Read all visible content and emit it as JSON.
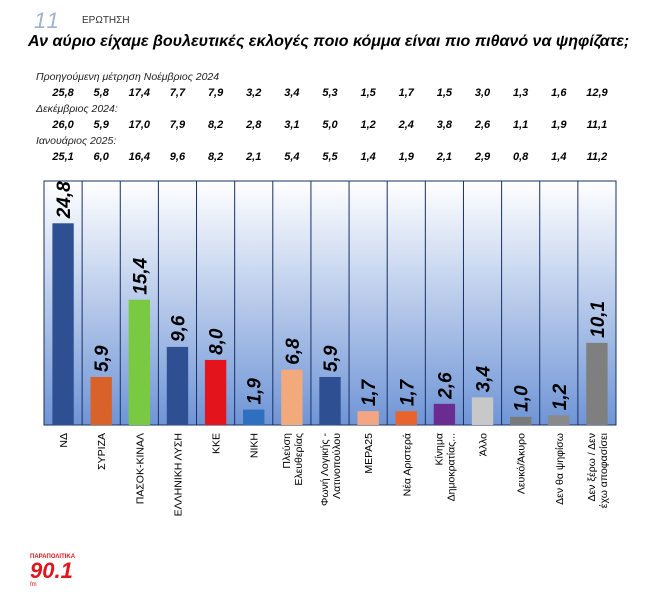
{
  "header": {
    "question_number": "11",
    "question_label": "ΕΡΩΤΗΣΗ",
    "title": "Αν αύριο είχαμε βουλευτικές εκλογές ποιο κόμμα είναι πιο πιθανό να ψηφίζατε;"
  },
  "previous_measurements": [
    {
      "label": "Προηγούμενη μέτρηση Νοέμβριος 2024",
      "values": [
        "25,8",
        "5,8",
        "17,4",
        "7,7",
        "7,9",
        "3,2",
        "3,4",
        "5,3",
        "1,5",
        "1,7",
        "1,5",
        "3,0",
        "1,3",
        "1,6",
        "12,9"
      ]
    },
    {
      "label": "Δεκέμβριος 2024:",
      "values": [
        "26,0",
        "5,9",
        "17,0",
        "7,9",
        "8,2",
        "2,8",
        "3,1",
        "5,0",
        "1,2",
        "2,4",
        "3,8",
        "2,6",
        "1,1",
        "1,9",
        "11,1"
      ]
    },
    {
      "label": "Ιανουάριος 2025:",
      "values": [
        "25,1",
        "6,0",
        "16,4",
        "9,6",
        "8,2",
        "2,1",
        "5,4",
        "5,5",
        "1,4",
        "1,9",
        "2,1",
        "2,9",
        "0,8",
        "1,4",
        "11,2"
      ]
    }
  ],
  "chart_data": {
    "type": "bar",
    "title": "Αν αύριο είχαμε βουλευτικές εκλογές ποιο κόμμα είναι πιο πιθανό να ψηφίζατε;",
    "categories": [
      "ΝΔ",
      "ΣΥΡΙΖΑ",
      "ΠΑΣΟΚ-ΚΙΝΑΛ",
      "ΕΛΛΗΝΙΚΗ ΛΥΣΗ",
      "ΚΚΕ",
      "ΝΙΚΗ",
      "Πλεύση Ελευθερίας",
      "Φωνή Λογικής - Λατινοπούλου",
      "ΜΕΡΑ25",
      "Νέα Αριστερά",
      "Κίνημα Δημοκρατίας...",
      "Άλλο",
      "Λευκό/Άκυρο",
      "Δεν θα ψηφίσω",
      "Δεν ξέρω / Δεν έχω αποφασίσει"
    ],
    "category_lines": [
      [
        "ΝΔ"
      ],
      [
        "ΣΥΡΙΖΑ"
      ],
      [
        "ΠΑΣΟΚ-ΚΙΝΑΛ"
      ],
      [
        "ΕΛΛΗΝΙΚΗ ΛΥΣΗ"
      ],
      [
        "ΚΚΕ"
      ],
      [
        "ΝΙΚΗ"
      ],
      [
        "Πλεύση",
        "Ελευθερίας"
      ],
      [
        "Φωνή Λογικής -",
        "Λατινοπούλου"
      ],
      [
        "ΜΕΡΑ25"
      ],
      [
        "Νέα Αριστερά"
      ],
      [
        "Κίνημα",
        "Δημοκρατίας..."
      ],
      [
        "Άλλο"
      ],
      [
        "Λευκό/Άκυρο"
      ],
      [
        "Δεν θα ψηφίσω"
      ],
      [
        "Δεν ξέρω / Δεν",
        "έχω αποφασίσει"
      ]
    ],
    "values": [
      24.8,
      5.9,
      15.4,
      9.6,
      8.0,
      1.9,
      6.8,
      5.9,
      1.7,
      1.7,
      2.6,
      3.4,
      1.0,
      1.2,
      10.1
    ],
    "value_labels": [
      "24,8",
      "5,9",
      "15,4",
      "9,6",
      "8,0",
      "1,9",
      "6,8",
      "5,9",
      "1,7",
      "1,7",
      "2,6",
      "3,4",
      "1,0",
      "1,2",
      "10,1"
    ],
    "colors": [
      "#2e4f91",
      "#d9622b",
      "#7ac943",
      "#2e4f91",
      "#e3141b",
      "#2e6fc0",
      "#f2a97c",
      "#2e4f91",
      "#f4a582",
      "#e8642c",
      "#6a2c91",
      "#c8c8c8",
      "#7a7a7a",
      "#8a8a8a",
      "#7f7f7f"
    ],
    "ylim": [
      0,
      30
    ],
    "xlabel": "",
    "ylabel": "",
    "background_top": "#ffffff",
    "background_bottom": "#6f95d6",
    "label_color": "#1f3d7a"
  },
  "logo": {
    "top": "ΠΑΡΑΠΟΛΙΤΙΚΑ",
    "number": "90.1",
    "bottom": "fm"
  }
}
